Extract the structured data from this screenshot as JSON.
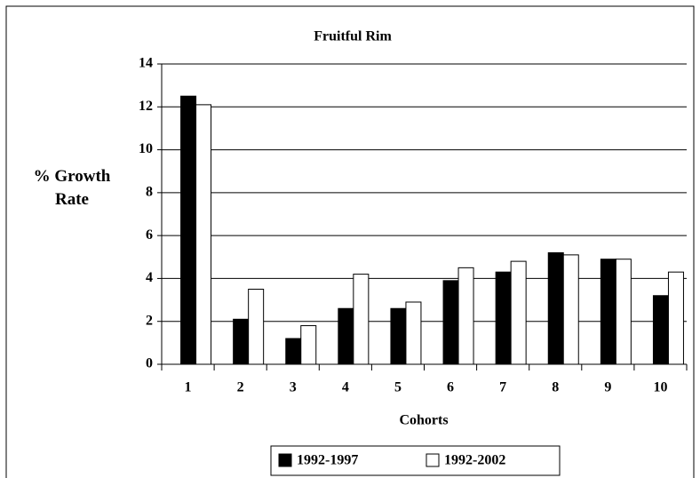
{
  "chart_data": {
    "type": "bar",
    "title": "Fruitful Rim",
    "xlabel": "Cohorts",
    "ylabel": "% Growth Rate",
    "categories": [
      "1",
      "2",
      "3",
      "4",
      "5",
      "6",
      "7",
      "8",
      "9",
      "10"
    ],
    "series": [
      {
        "name": "1992-1997",
        "color": "#000000",
        "values": [
          12.5,
          2.1,
          1.2,
          2.6,
          2.6,
          3.9,
          4.3,
          5.2,
          4.9,
          3.2
        ]
      },
      {
        "name": "1992-2002",
        "color": "#ffffff",
        "values": [
          12.1,
          3.5,
          1.8,
          4.2,
          2.9,
          4.5,
          4.8,
          5.1,
          4.9,
          4.3
        ]
      }
    ],
    "ylim": [
      0,
      14
    ],
    "yticks": [
      0,
      2,
      4,
      6,
      8,
      10,
      12,
      14
    ],
    "grid": true,
    "legend": "bottom"
  }
}
